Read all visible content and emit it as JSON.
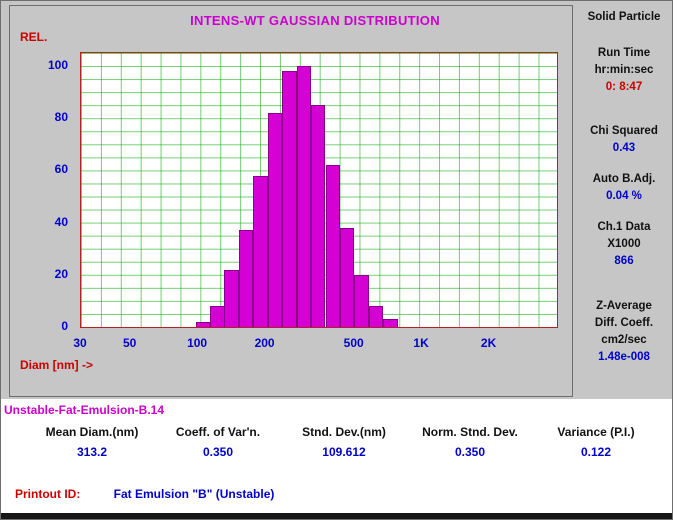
{
  "chart_data": {
    "type": "bar",
    "title": "INTENS-WT GAUSSIAN DISTRIBUTION",
    "ylabel": "REL.",
    "xlabel": "Diam [nm] ->",
    "x_scale": "log",
    "x_range": [
      30,
      4000
    ],
    "y_range": [
      0,
      105
    ],
    "y_ticks": [
      0,
      20,
      40,
      60,
      80,
      100
    ],
    "x_ticks": [
      {
        "value": 30,
        "label": "30"
      },
      {
        "value": 50,
        "label": "50"
      },
      {
        "value": 100,
        "label": "100"
      },
      {
        "value": 200,
        "label": "200"
      },
      {
        "value": 500,
        "label": "500"
      },
      {
        "value": 1000,
        "label": "1K"
      },
      {
        "value": 2000,
        "label": "2K"
      }
    ],
    "bars": {
      "centers_nm": [
        105,
        122,
        141,
        164,
        190,
        221,
        256,
        297,
        344,
        399,
        463,
        537,
        623,
        723
      ],
      "heights_rel": [
        2,
        8,
        22,
        37,
        58,
        82,
        98,
        100,
        85,
        62,
        38,
        20,
        8,
        3
      ],
      "bin_ratio": 1.16
    },
    "bar_color": "#d400d4",
    "grid": true,
    "grid_color": "#00a500",
    "legend": "none"
  },
  "sidebar": {
    "header": "Solid Particle",
    "groups": [
      {
        "lines": [
          {
            "text": "Run Time",
            "color": "black"
          },
          {
            "text": "hr:min:sec",
            "color": "black"
          },
          {
            "text": "0: 8:47",
            "color": "red"
          }
        ]
      },
      {
        "lines": [
          {
            "text": "Chi Squared",
            "color": "black"
          },
          {
            "text": "0.43",
            "color": "blue"
          }
        ]
      },
      {
        "lines": [
          {
            "text": "Auto B.Adj.",
            "color": "black"
          },
          {
            "text": "0.04 %",
            "color": "blue"
          }
        ]
      },
      {
        "lines": [
          {
            "text": "Ch.1 Data",
            "color": "black"
          },
          {
            "text": "X1000",
            "color": "black"
          },
          {
            "text": "866",
            "color": "blue"
          }
        ]
      },
      {
        "lines": [
          {
            "text": "Z-Average",
            "color": "black"
          },
          {
            "text": "Diff. Coeff.",
            "color": "black"
          },
          {
            "text": "cm2/sec",
            "color": "black"
          },
          {
            "text": "1.48e-008",
            "color": "blue"
          }
        ]
      }
    ]
  },
  "sample": {
    "file_label": "Unstable-Fat-Emulsion-B.14"
  },
  "stats": {
    "columns": [
      {
        "label": "Mean Diam.(nm)",
        "value": "313.2"
      },
      {
        "label": "Coeff. of Var'n.",
        "value": "0.350"
      },
      {
        "label": "Stnd. Dev.(nm)",
        "value": "109.612"
      },
      {
        "label": "Norm. Stnd. Dev.",
        "value": "0.350"
      },
      {
        "label": "Variance (P.I.)",
        "value": "0.122"
      }
    ]
  },
  "printout": {
    "label": "Printout ID:",
    "value": "Fat Emulsion \"B\" (Unstable)"
  },
  "colors": {
    "accent_magenta": "#cc00cc",
    "text_red": "#cc0000",
    "value_blue": "#0000cc",
    "grid_green": "#00a500",
    "panel_gray": "#c6c6c6"
  }
}
